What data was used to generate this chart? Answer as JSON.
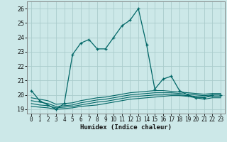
{
  "xlabel": "Humidex (Indice chaleur)",
  "bg_color": "#cce8e8",
  "grid_color": "#aacccc",
  "line_color": "#006666",
  "xlim": [
    -0.5,
    23.5
  ],
  "ylim": [
    18.7,
    26.5
  ],
  "xticks": [
    0,
    1,
    2,
    3,
    4,
    5,
    6,
    7,
    8,
    9,
    10,
    11,
    12,
    13,
    14,
    15,
    16,
    17,
    18,
    19,
    20,
    21,
    22,
    23
  ],
  "yticks": [
    19,
    20,
    21,
    22,
    23,
    24,
    25,
    26
  ],
  "main_line": {
    "x": [
      0,
      1,
      2,
      3,
      4,
      5,
      6,
      7,
      8,
      9,
      10,
      11,
      12,
      13,
      14,
      15,
      16,
      17,
      18,
      19,
      20,
      21,
      22,
      23
    ],
    "y": [
      20.3,
      19.6,
      19.3,
      19.0,
      19.4,
      22.8,
      23.6,
      23.85,
      23.2,
      23.2,
      24.0,
      24.8,
      25.2,
      26.0,
      23.5,
      20.4,
      21.1,
      21.3,
      20.3,
      20.0,
      19.8,
      19.8,
      20.0,
      20.0
    ]
  },
  "flat_lines": [
    {
      "x": [
        0,
        1,
        2,
        3,
        4,
        5,
        6,
        7,
        8,
        9,
        10,
        11,
        12,
        13,
        14,
        15,
        16,
        17,
        18,
        19,
        20,
        21,
        22,
        23
      ],
      "y": [
        19.2,
        19.15,
        19.1,
        19.0,
        19.05,
        19.1,
        19.2,
        19.25,
        19.3,
        19.4,
        19.5,
        19.6,
        19.7,
        19.75,
        19.8,
        19.85,
        19.9,
        19.95,
        19.95,
        19.9,
        19.8,
        19.7,
        19.8,
        19.8
      ]
    },
    {
      "x": [
        0,
        1,
        2,
        3,
        4,
        5,
        6,
        7,
        8,
        9,
        10,
        11,
        12,
        13,
        14,
        15,
        16,
        17,
        18,
        19,
        20,
        21,
        22,
        23
      ],
      "y": [
        19.4,
        19.3,
        19.25,
        19.1,
        19.15,
        19.2,
        19.3,
        19.4,
        19.5,
        19.55,
        19.65,
        19.75,
        19.85,
        19.9,
        19.95,
        20.0,
        20.0,
        20.05,
        20.0,
        19.95,
        19.9,
        19.85,
        19.9,
        19.9
      ]
    },
    {
      "x": [
        0,
        1,
        2,
        3,
        4,
        5,
        6,
        7,
        8,
        9,
        10,
        11,
        12,
        13,
        14,
        15,
        16,
        17,
        18,
        19,
        20,
        21,
        22,
        23
      ],
      "y": [
        19.6,
        19.5,
        19.4,
        19.2,
        19.25,
        19.3,
        19.45,
        19.55,
        19.65,
        19.7,
        19.8,
        19.9,
        20.0,
        20.05,
        20.1,
        20.15,
        20.15,
        20.15,
        20.1,
        20.05,
        20.0,
        19.95,
        20.0,
        20.0
      ]
    },
    {
      "x": [
        0,
        1,
        2,
        3,
        4,
        5,
        6,
        7,
        8,
        9,
        10,
        11,
        12,
        13,
        14,
        15,
        16,
        17,
        18,
        19,
        20,
        21,
        22,
        23
      ],
      "y": [
        19.8,
        19.7,
        19.6,
        19.35,
        19.4,
        19.45,
        19.6,
        19.7,
        19.8,
        19.85,
        19.95,
        20.05,
        20.15,
        20.2,
        20.25,
        20.3,
        20.3,
        20.25,
        20.2,
        20.15,
        20.1,
        20.05,
        20.1,
        20.1
      ]
    }
  ]
}
